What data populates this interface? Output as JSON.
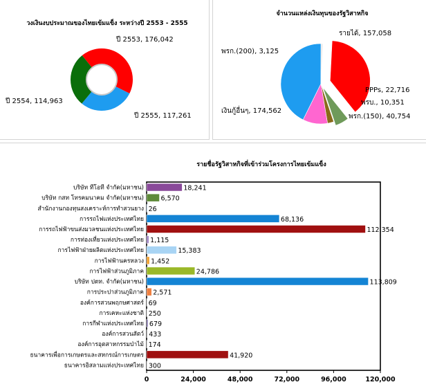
{
  "chart_data": [
    {
      "type": "pie",
      "style": "donut",
      "title": "วงเงินงบประมาณของไทยเข้มแข็ง ระหว่างปี 2553 - 2555",
      "slices": [
        {
          "label": "ปี 2553",
          "value": 176042,
          "text": "ปี 2553, 176,042",
          "color": "#ff0000"
        },
        {
          "label": "ปี 2555",
          "value": 117261,
          "text": "ปี 2555, 117,261",
          "color": "#1e9cf0"
        },
        {
          "label": "ปี 2554",
          "value": 114963,
          "text": "ปี 2554, 114,963",
          "color": "#0a6e0a"
        }
      ]
    },
    {
      "type": "pie",
      "title": "จำนวนแหล่งเงินทุนของรัฐวิสาหกิจ",
      "slices": [
        {
          "label": "รายได้",
          "value": 157058,
          "text": "รายได้, 157,058",
          "color": "#ff0000"
        },
        {
          "label": "PPPs",
          "value": 22716,
          "text": "PPPs, 22,716",
          "color": "#6f9a5a"
        },
        {
          "label": "พรบ.",
          "value": 10351,
          "text": "พรบ., 10,351",
          "color": "#8a6a1a"
        },
        {
          "label": "พรก.(150)",
          "value": 40754,
          "text": "พรก.(150), 40,754",
          "color": "#ff66d0"
        },
        {
          "label": "เงินกู้อื่นๆ",
          "value": 174562,
          "text": "เงินกู้อื่นๆ, 174,562",
          "color": "#1e9cf0"
        },
        {
          "label": "พรก.(200)",
          "value": 3125,
          "text": "พรก.(200), 3,125",
          "color": "#e8e8e8"
        }
      ]
    },
    {
      "type": "bar",
      "orientation": "horizontal",
      "title": "รายชื่อรัฐวิสาหกิจที่เข้าร่วมโครงการไทยเข้มแข็ง",
      "xlim": [
        0,
        120000
      ],
      "xticks": [
        "0",
        "24,000",
        "48,000",
        "72,000",
        "96,000",
        "120,000"
      ],
      "bars": [
        {
          "category": "บริษัท ทีโอที จำกัด(มหาชน)",
          "value": 18241,
          "label": "18,241",
          "color": "#8a4a9a"
        },
        {
          "category": "บริษัท กสท โทรคมนาคม จำกัด(มหาชน)",
          "value": 6570,
          "label": "6,570",
          "color": "#5f8a3a"
        },
        {
          "category": "สำนักงานกองทุนสงเคราะห์การทำสวนยาง",
          "value": 26,
          "label": "26",
          "color": "#1e7ad0"
        },
        {
          "category": "การรถไฟแห่งประเทศไทย",
          "value": 68136,
          "label": "68,136",
          "color": "#1484d4"
        },
        {
          "category": "การรถไฟฟ้าขนส่งมวลชนแห่งประเทศไทย",
          "value": 112354,
          "label": "112,354",
          "color": "#a01010"
        },
        {
          "category": "การท่องเที่ยวแห่งประเทศไทย",
          "value": 1115,
          "label": "1,115",
          "color": "#9a80c0"
        },
        {
          "category": "การไฟฟ้าฝ่ายผลิตแห่งประเทศไทย",
          "value": 15383,
          "label": "15,383",
          "color": "#a8d4f4"
        },
        {
          "category": "การไฟฟ้านครหลวง",
          "value": 1452,
          "label": "1,452",
          "color": "#f0a030"
        },
        {
          "category": "การไฟฟ้าส่วนภูมิภาค",
          "value": 24786,
          "label": "24,786",
          "color": "#9ab828"
        },
        {
          "category": "บริษัท ปตท. จำกัด(มหาชน)",
          "value": 113809,
          "label": "113,809",
          "color": "#1484d4"
        },
        {
          "category": "การประปาส่วนภูมิภาค",
          "value": 2571,
          "label": "2,571",
          "color": "#f08040"
        },
        {
          "category": "องค์การสวนพฤกษศาสตร์",
          "value": 69,
          "label": "69",
          "color": "#888888"
        },
        {
          "category": "การเคหะแห่งชาติ",
          "value": 250,
          "label": "250",
          "color": "#888888"
        },
        {
          "category": "การกีฬาแห่งประเทศไทย",
          "value": 679,
          "label": "679",
          "color": "#7060a0"
        },
        {
          "category": "องค์การสวนสัตว์",
          "value": 433,
          "label": "433",
          "color": "#888888"
        },
        {
          "category": "องค์การอุตสาหกรรมป่าไม้",
          "value": 174,
          "label": "174",
          "color": "#888888"
        },
        {
          "category": "ธนาคารเพื่อการเกษตรและสหกรณ์การเกษตร",
          "value": 41920,
          "label": "41,920",
          "color": "#a01010"
        },
        {
          "category": "ธนาคารอิสลามแห่งประเทศไทย",
          "value": 300,
          "label": "300",
          "color": "#888888"
        }
      ]
    }
  ]
}
